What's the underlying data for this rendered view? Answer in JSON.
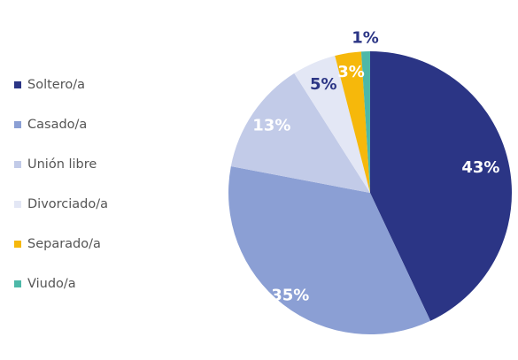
{
  "chart_data": {
    "type": "pie",
    "categories": [
      "Soltero/a",
      "Casado/a",
      "Unión libre",
      "Divorciado/a",
      "Separado/a",
      "Viudo/a"
    ],
    "values": [
      43,
      35,
      13,
      5,
      3,
      1
    ],
    "value_labels": [
      "43%",
      "35%",
      "13%",
      "5%",
      "3%",
      "1%"
    ],
    "colors": [
      "#2b3585",
      "#8b9fd4",
      "#c2cbe8",
      "#e3e7f5",
      "#f6b80b",
      "#4db8a8"
    ],
    "label_colors": [
      "#ffffff",
      "#ffffff",
      "#ffffff",
      "#2b3585",
      "#ffffff",
      "#2b3585"
    ],
    "legend": "left"
  }
}
